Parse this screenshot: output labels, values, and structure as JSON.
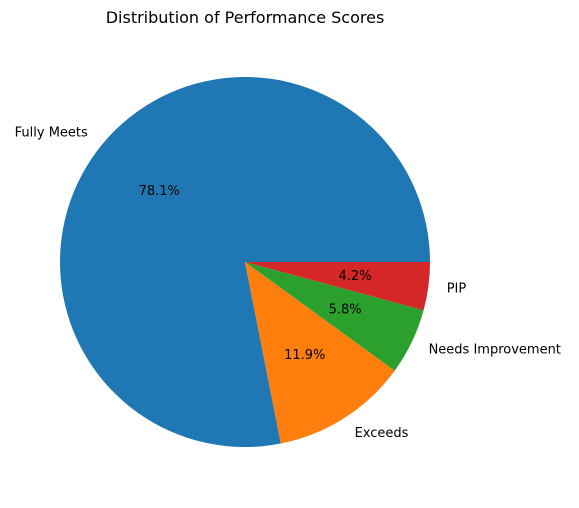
{
  "chart_data": {
    "type": "pie",
    "title": "Distribution of Performance Scores",
    "labels": [
      "Fully Meets",
      "Exceeds",
      "Needs Improvement",
      "PIP"
    ],
    "values": [
      78.1,
      11.9,
      5.8,
      4.2
    ],
    "pct_labels": [
      "78.1%",
      "11.9%",
      "5.8%",
      "4.2%"
    ],
    "colors": [
      "#1f77b4",
      "#ff7f0e",
      "#2ca02c",
      "#d62728"
    ],
    "start_angle": 0,
    "direction": "counterclockwise"
  }
}
